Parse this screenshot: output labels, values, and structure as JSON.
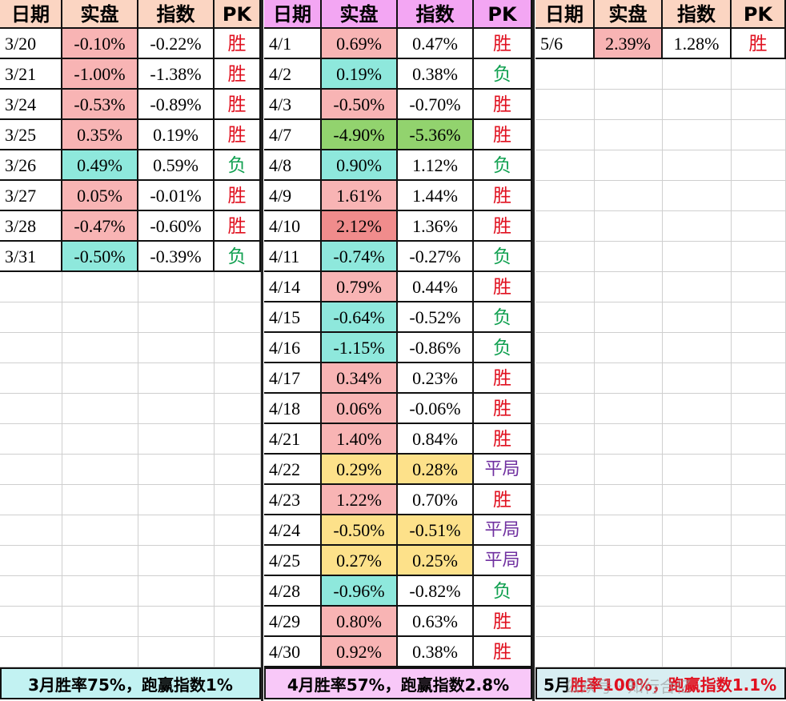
{
  "headers": [
    "日期",
    "实盘",
    "指数",
    "PK"
  ],
  "colors": {
    "header_march": "#fbd5c2",
    "header_april": "#f3a6f3",
    "header_may": "#fbd5c2",
    "win": "#e0101f",
    "lose": "#10a050",
    "tie": "#7030a0",
    "fill_red": "#f8b4b4",
    "fill_dark_red": "#f08c8c",
    "fill_cyan": "#8ee8dc",
    "fill_yellow": "#fde18a",
    "fill_green": "#92d36e",
    "summary_march": "#c2f2f2",
    "summary_april": "#f8c8f8",
    "summary_may": "#d8eef2"
  },
  "march": {
    "rows": [
      {
        "date": "3/20",
        "actual": "-0.10%",
        "index": "-0.22%",
        "pk": "胜",
        "pk_type": "win",
        "actual_bg": "red",
        "index_bg": ""
      },
      {
        "date": "3/21",
        "actual": "-1.00%",
        "index": "-1.38%",
        "pk": "胜",
        "pk_type": "win",
        "actual_bg": "red",
        "index_bg": ""
      },
      {
        "date": "3/24",
        "actual": "-0.53%",
        "index": "-0.89%",
        "pk": "胜",
        "pk_type": "win",
        "actual_bg": "red",
        "index_bg": ""
      },
      {
        "date": "3/25",
        "actual": "0.35%",
        "index": "0.19%",
        "pk": "胜",
        "pk_type": "win",
        "actual_bg": "red",
        "index_bg": ""
      },
      {
        "date": "3/26",
        "actual": "0.49%",
        "index": "0.59%",
        "pk": "负",
        "pk_type": "lose",
        "actual_bg": "cyan",
        "index_bg": ""
      },
      {
        "date": "3/27",
        "actual": "0.05%",
        "index": "-0.01%",
        "pk": "胜",
        "pk_type": "win",
        "actual_bg": "red",
        "index_bg": ""
      },
      {
        "date": "3/28",
        "actual": "-0.47%",
        "index": "-0.60%",
        "pk": "胜",
        "pk_type": "win",
        "actual_bg": "red",
        "index_bg": ""
      },
      {
        "date": "3/31",
        "actual": "-0.50%",
        "index": "-0.39%",
        "pk": "负",
        "pk_type": "lose",
        "actual_bg": "cyan",
        "index_bg": ""
      }
    ],
    "summary": "3月胜率75%，跑赢指数1%"
  },
  "april": {
    "rows": [
      {
        "date": "4/1",
        "actual": "0.69%",
        "index": "0.47%",
        "pk": "胜",
        "pk_type": "win",
        "actual_bg": "red",
        "index_bg": ""
      },
      {
        "date": "4/2",
        "actual": "0.19%",
        "index": "0.38%",
        "pk": "负",
        "pk_type": "lose",
        "actual_bg": "cyan",
        "index_bg": ""
      },
      {
        "date": "4/3",
        "actual": "-0.50%",
        "index": "-0.70%",
        "pk": "胜",
        "pk_type": "win",
        "actual_bg": "red",
        "index_bg": ""
      },
      {
        "date": "4/7",
        "actual": "-4.90%",
        "index": "-5.36%",
        "pk": "胜",
        "pk_type": "win",
        "actual_bg": "green",
        "index_bg": "green"
      },
      {
        "date": "4/8",
        "actual": "0.90%",
        "index": "1.12%",
        "pk": "负",
        "pk_type": "lose",
        "actual_bg": "cyan",
        "index_bg": ""
      },
      {
        "date": "4/9",
        "actual": "1.61%",
        "index": "1.44%",
        "pk": "胜",
        "pk_type": "win",
        "actual_bg": "red",
        "index_bg": ""
      },
      {
        "date": "4/10",
        "actual": "2.12%",
        "index": "1.36%",
        "pk": "胜",
        "pk_type": "win",
        "actual_bg": "red2",
        "index_bg": ""
      },
      {
        "date": "4/11",
        "actual": "-0.74%",
        "index": "-0.27%",
        "pk": "负",
        "pk_type": "lose",
        "actual_bg": "cyan",
        "index_bg": ""
      },
      {
        "date": "4/14",
        "actual": "0.79%",
        "index": "0.44%",
        "pk": "胜",
        "pk_type": "win",
        "actual_bg": "red",
        "index_bg": ""
      },
      {
        "date": "4/15",
        "actual": "-0.64%",
        "index": "-0.52%",
        "pk": "负",
        "pk_type": "lose",
        "actual_bg": "cyan",
        "index_bg": ""
      },
      {
        "date": "4/16",
        "actual": "-1.15%",
        "index": "-0.86%",
        "pk": "负",
        "pk_type": "lose",
        "actual_bg": "cyan",
        "index_bg": ""
      },
      {
        "date": "4/17",
        "actual": "0.34%",
        "index": "0.23%",
        "pk": "胜",
        "pk_type": "win",
        "actual_bg": "red",
        "index_bg": ""
      },
      {
        "date": "4/18",
        "actual": "0.06%",
        "index": "-0.06%",
        "pk": "胜",
        "pk_type": "win",
        "actual_bg": "red",
        "index_bg": ""
      },
      {
        "date": "4/21",
        "actual": "1.40%",
        "index": "0.84%",
        "pk": "胜",
        "pk_type": "win",
        "actual_bg": "red",
        "index_bg": ""
      },
      {
        "date": "4/22",
        "actual": "0.29%",
        "index": "0.28%",
        "pk": "平局",
        "pk_type": "tie",
        "actual_bg": "yellow",
        "index_bg": "yellow"
      },
      {
        "date": "4/23",
        "actual": "1.22%",
        "index": "0.70%",
        "pk": "胜",
        "pk_type": "win",
        "actual_bg": "red",
        "index_bg": ""
      },
      {
        "date": "4/24",
        "actual": "-0.50%",
        "index": "-0.51%",
        "pk": "平局",
        "pk_type": "tie",
        "actual_bg": "yellow",
        "index_bg": "yellow"
      },
      {
        "date": "4/25",
        "actual": "0.27%",
        "index": "0.25%",
        "pk": "平局",
        "pk_type": "tie",
        "actual_bg": "yellow",
        "index_bg": "yellow"
      },
      {
        "date": "4/28",
        "actual": "-0.96%",
        "index": "-0.82%",
        "pk": "负",
        "pk_type": "lose",
        "actual_bg": "cyan",
        "index_bg": ""
      },
      {
        "date": "4/29",
        "actual": "0.80%",
        "index": "0.63%",
        "pk": "胜",
        "pk_type": "win",
        "actual_bg": "red",
        "index_bg": ""
      },
      {
        "date": "4/30",
        "actual": "0.92%",
        "index": "0.38%",
        "pk": "胜",
        "pk_type": "win",
        "actual_bg": "red",
        "index_bg": ""
      }
    ],
    "summary": "4月胜率57%，跑赢指数2.8%"
  },
  "may": {
    "rows": [
      {
        "date": "5/6",
        "actual": "2.39%",
        "index": "1.28%",
        "pk": "胜",
        "pk_type": "win",
        "actual_bg": "red",
        "index_bg": ""
      }
    ],
    "summary_prefix": "5月",
    "summary_rest": "胜率100%，跑赢指数1.1%"
  },
  "watermark": "公众号 · 知行合亿"
}
